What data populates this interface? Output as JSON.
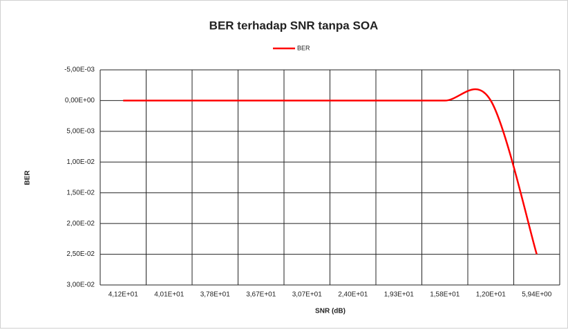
{
  "chart_data": {
    "type": "line",
    "title": "BER terhadap SNR tanpa SOA",
    "x_label": "SNR (dB)",
    "y_label": "BER",
    "categories": [
      "4,12E+01",
      "4,01E+01",
      "3,78E+01",
      "3,67E+01",
      "3,07E+01",
      "2,40E+01",
      "1,93E+01",
      "1,58E+01",
      "1,20E+01",
      "5,94E+00"
    ],
    "series": [
      {
        "name": "BER",
        "color": "#ff0000",
        "values": [
          0,
          0,
          0,
          0,
          0,
          0,
          0,
          0,
          0,
          0.025
        ]
      }
    ],
    "ylim": [
      -0.005,
      0.03
    ],
    "y_reversed": true,
    "smooth": true,
    "grid": true,
    "legend": "top",
    "yticks": [
      {
        "value": -0.005,
        "label": "-5,00E-03"
      },
      {
        "value": 0,
        "label": "0,00E+00"
      },
      {
        "value": 0.005,
        "label": "5,00E-03"
      },
      {
        "value": 0.01,
        "label": "1,00E-02"
      },
      {
        "value": 0.015,
        "label": "1,50E-02"
      },
      {
        "value": 0.02,
        "label": "2,00E-02"
      },
      {
        "value": 0.025,
        "label": "2,50E-02"
      },
      {
        "value": 0.03,
        "label": "3,00E-02"
      }
    ]
  }
}
